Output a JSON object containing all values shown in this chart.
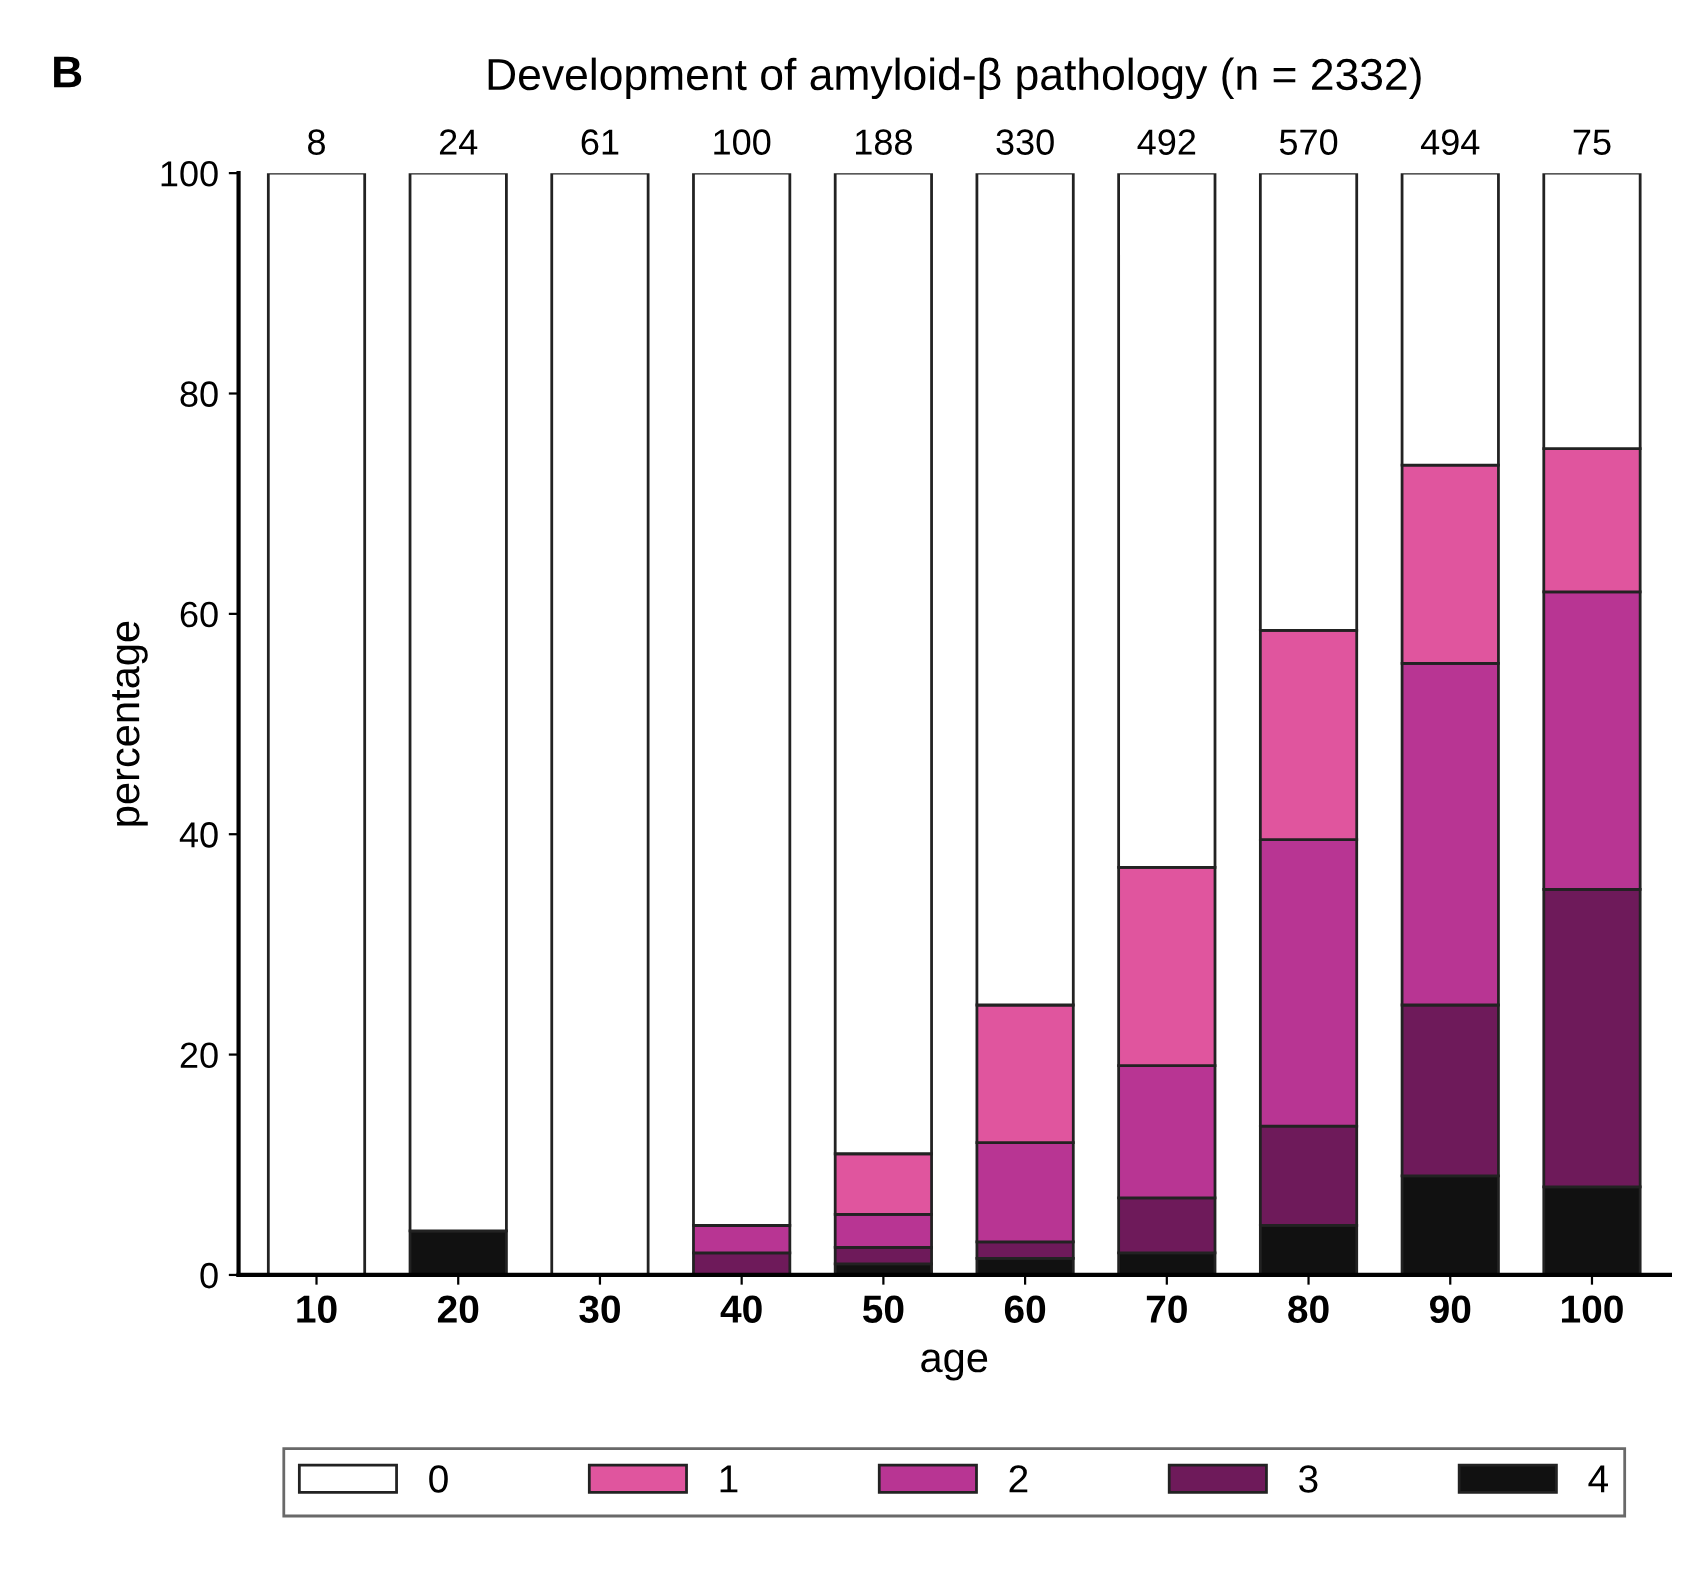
{
  "chart_data": {
    "type": "bar",
    "stacked": true,
    "title": "Development of amyloid-β pathology (n = 2332)",
    "xlabel": "age",
    "ylabel": "percentage",
    "categories": [
      "10",
      "20",
      "30",
      "40",
      "50",
      "60",
      "70",
      "80",
      "90",
      "100"
    ],
    "series": [
      {
        "name": "4",
        "color": "#111111",
        "values": [
          0,
          4,
          0,
          0,
          1,
          1.5,
          2,
          4.5,
          9,
          8
        ]
      },
      {
        "name": "3",
        "color": "#6e1a5a",
        "values": [
          0,
          0,
          0,
          2,
          1.5,
          1.5,
          5,
          9,
          15.5,
          27
        ]
      },
      {
        "name": "2",
        "color": "#b83593",
        "values": [
          0,
          0,
          0,
          2.5,
          3,
          9,
          12,
          26,
          31,
          27
        ]
      },
      {
        "name": "1",
        "color": "#e0559e",
        "values": [
          0,
          0,
          0,
          0,
          5.5,
          12.5,
          18,
          19,
          18,
          13
        ]
      },
      {
        "name": "0",
        "color": "#ffffff",
        "values": [
          100,
          96,
          100,
          95.5,
          89,
          75.5,
          63,
          41.5,
          26.5,
          25
        ]
      }
    ],
    "ylim": [
      0,
      100
    ],
    "yticks": [
      0,
      20,
      40,
      60,
      80,
      100
    ],
    "grid": false,
    "legend": "bottom",
    "annotations": [
      "B",
      {
        "text": "8",
        "x": "10",
        "y": 100
      },
      {
        "text": "24",
        "x": "20",
        "y": 100
      },
      {
        "text": "61",
        "x": "30",
        "y": 100
      },
      {
        "text": "100",
        "x": "40",
        "y": 100
      },
      {
        "text": "188",
        "x": "50",
        "y": 100
      },
      {
        "text": "330",
        "x": "60",
        "y": 100
      },
      {
        "text": "492",
        "x": "70",
        "y": 100
      },
      {
        "text": "570",
        "x": "80",
        "y": 100
      },
      {
        "text": "494",
        "x": "90",
        "y": 100
      },
      {
        "text": "75",
        "x": "100",
        "y": 100
      }
    ]
  }
}
